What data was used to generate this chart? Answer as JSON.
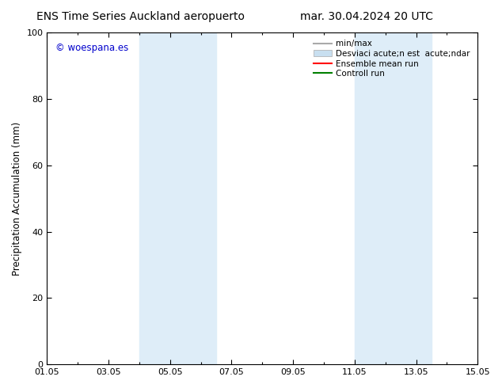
{
  "title_left": "ENS Time Series Auckland aeropuerto",
  "title_right": "mar. 30.04.2024 20 UTC",
  "ylabel": "Precipitation Accumulation (mm)",
  "ylim": [
    0,
    100
  ],
  "xtick_labels": [
    "01.05",
    "03.05",
    "05.05",
    "07.05",
    "09.05",
    "11.05",
    "13.05",
    "15.05"
  ],
  "xtick_positions": [
    0,
    2,
    4,
    6,
    8,
    10,
    12,
    14
  ],
  "ytick_labels": [
    "0",
    "20",
    "40",
    "60",
    "80",
    "100"
  ],
  "ytick_positions": [
    0,
    20,
    40,
    60,
    80,
    100
  ],
  "shaded_regions": [
    {
      "x_start": 3.0,
      "x_end": 4.0
    },
    {
      "x_start": 4.0,
      "x_end": 5.5
    },
    {
      "x_start": 10.0,
      "x_end": 11.0
    },
    {
      "x_start": 11.0,
      "x_end": 12.5
    }
  ],
  "shaded_color": "#deedf8",
  "watermark_text": "© woespana.es",
  "watermark_color": "#0000cc",
  "legend_labels": [
    "min/max",
    "Desviaci acute;n est  acute;ndar",
    "Ensemble mean run",
    "Controll run"
  ],
  "legend_colors": [
    "#aaaaaa",
    "#c8dff0",
    "red",
    "green"
  ],
  "legend_styles": [
    "line",
    "box",
    "line",
    "line"
  ],
  "bg_color": "white",
  "title_fontsize": 10,
  "axis_label_fontsize": 8.5,
  "tick_fontsize": 8,
  "legend_fontsize": 7.5
}
